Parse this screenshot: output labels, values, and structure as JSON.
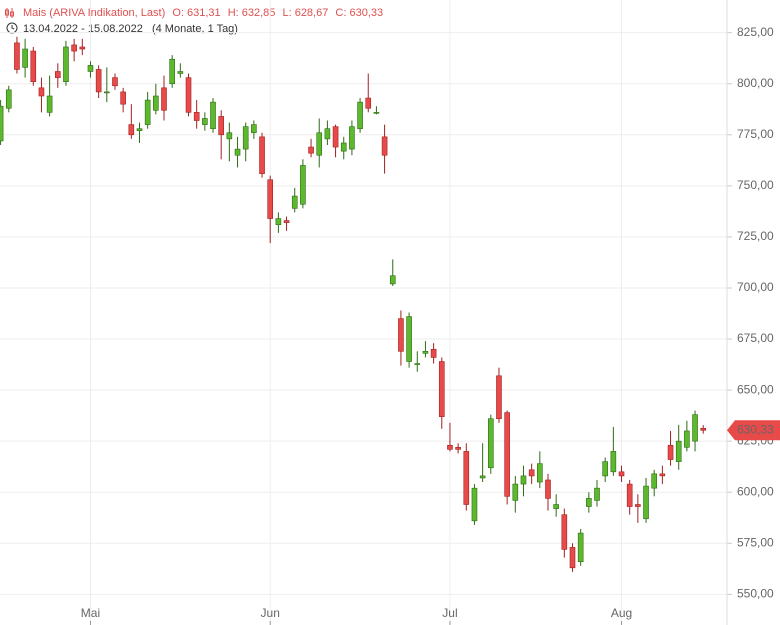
{
  "chart_data": {
    "type": "candlestick",
    "header": {
      "title": "Mais (ARIVA Indikation, Last)",
      "open": "O: 631,31",
      "high": "H: 632,85",
      "low": "L: 628,67",
      "close": "C: 630,33",
      "range": "13.04.2022 - 15.08.2022",
      "period": "(4 Monate, 1 Tag)"
    },
    "categories": [
      null,
      null,
      null,
      null,
      null,
      null,
      null,
      null,
      null,
      null,
      null,
      "Mai",
      null,
      null,
      null,
      null,
      null,
      null,
      null,
      null,
      null,
      null,
      null,
      null,
      null,
      null,
      null,
      null,
      null,
      null,
      null,
      null,
      null,
      "Jun",
      null,
      null,
      null,
      null,
      null,
      null,
      null,
      null,
      null,
      null,
      null,
      null,
      null,
      null,
      null,
      null,
      null,
      null,
      null,
      null,
      null,
      "Jul",
      null,
      null,
      null,
      null,
      null,
      null,
      null,
      null,
      null,
      null,
      null,
      null,
      null,
      null,
      null,
      null,
      null,
      null,
      null,
      null,
      "Aug",
      null,
      null,
      null,
      null,
      null,
      null,
      null,
      null,
      null,
      null
    ],
    "open": [
      772,
      788,
      820,
      808,
      816,
      798,
      786,
      806,
      801,
      819,
      818,
      806,
      807,
      796,
      803,
      796,
      780,
      777,
      780,
      787,
      798,
      800,
      805,
      803,
      786,
      780,
      778,
      784,
      773,
      765,
      768,
      776,
      774,
      753,
      731,
      733,
      739,
      741,
      769,
      765,
      773,
      779,
      767,
      768,
      778,
      793,
      786,
      774,
      702,
      685,
      664,
      663,
      668,
      670,
      664,
      623,
      622,
      620,
      586,
      607,
      612,
      657,
      639,
      596,
      604,
      611,
      605,
      606,
      592,
      589,
      573,
      566,
      593,
      596,
      608,
      610,
      610,
      604,
      594,
      587,
      602,
      609,
      623,
      615,
      622,
      625,
      631.31
    ],
    "high": [
      792,
      799,
      823,
      822,
      818,
      803,
      804,
      810,
      821,
      822,
      822,
      811,
      809,
      808,
      805,
      798,
      790,
      781,
      796,
      800,
      804,
      814,
      810,
      805,
      792,
      786,
      793,
      787,
      781,
      774,
      781,
      782,
      776,
      755,
      737,
      735,
      749,
      763,
      773,
      783,
      782,
      780,
      774,
      782,
      793,
      805,
      789,
      780,
      714,
      689,
      688,
      669,
      674,
      673,
      666,
      634,
      624,
      624,
      604,
      624,
      638,
      661,
      640,
      608,
      613,
      614,
      620,
      609,
      599,
      592,
      575,
      582,
      600,
      606,
      617,
      632,
      613,
      606,
      599,
      607,
      611,
      613,
      630,
      633,
      635,
      640,
      632.85
    ],
    "low": [
      770,
      786,
      805,
      803,
      799,
      786,
      784,
      798,
      799,
      811,
      814,
      803,
      793,
      791,
      797,
      786,
      773,
      771,
      778,
      785,
      782,
      798,
      803,
      784,
      778,
      777,
      776,
      763,
      762,
      759,
      762,
      773,
      754,
      722,
      727,
      728,
      737,
      739,
      764,
      759,
      770,
      764,
      763,
      765,
      776,
      786,
      785,
      756,
      701,
      662,
      661,
      659,
      666,
      663,
      631,
      620,
      619,
      591,
      584,
      605,
      609,
      634,
      594,
      590,
      598,
      604,
      602,
      591,
      588,
      568,
      561,
      564,
      590,
      593,
      605,
      608,
      605,
      589,
      585,
      585,
      598,
      604,
      613,
      611,
      620,
      620,
      628.67
    ],
    "close": [
      789,
      797,
      807,
      817,
      801,
      794,
      794,
      803,
      818,
      816,
      817,
      809,
      796,
      796,
      799,
      790,
      775,
      778,
      792,
      794,
      787,
      812,
      806,
      786,
      782,
      783,
      791,
      775,
      776,
      768,
      779,
      780,
      756,
      734,
      734,
      732,
      745,
      760,
      766,
      776,
      778,
      769,
      771,
      779,
      791,
      788,
      786,
      765,
      706,
      669,
      686,
      663,
      669,
      666,
      637,
      621,
      621,
      594,
      602,
      608,
      636,
      636,
      598,
      604,
      608,
      608,
      614,
      597,
      594,
      572,
      563,
      580,
      597,
      602,
      615,
      620,
      608,
      593,
      593,
      603,
      609,
      608,
      616,
      625,
      630,
      638,
      630.33
    ],
    "up_color": "#5cb82c",
    "down_color": "#e84a4a",
    "ylim": [
      535,
      841
    ],
    "yticks": [
      {
        "value": 550,
        "label": "550,00"
      },
      {
        "value": 575,
        "label": "575,00"
      },
      {
        "value": 600,
        "label": "600,00"
      },
      {
        "value": 625,
        "label": "625,00"
      },
      {
        "value": 650,
        "label": "650,00"
      },
      {
        "value": 675,
        "label": "675,00"
      },
      {
        "value": 700,
        "label": "700,00"
      },
      {
        "value": 725,
        "label": "725,00"
      },
      {
        "value": 750,
        "label": "750,00"
      },
      {
        "value": 775,
        "label": "775,00"
      },
      {
        "value": 800,
        "label": "800,00"
      },
      {
        "value": 825,
        "label": "825,00"
      }
    ],
    "last_price": {
      "value": 630.33,
      "label": "630,33"
    },
    "grid": true
  }
}
